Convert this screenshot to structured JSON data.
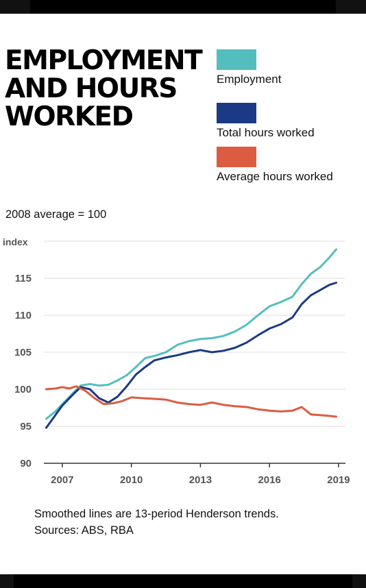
{
  "title": "EMPLOYMENT\nAND HOURS\nWORKED",
  "legend": [
    {
      "label": "Employment",
      "color": "#54bebe"
    },
    {
      "label": "Total hours worked",
      "color": "#1a3a85"
    },
    {
      "label": "Average hours worked",
      "color": "#db5c41"
    }
  ],
  "baseline_note": "2008 average = 100",
  "footnote": {
    "line1": "Smoothed lines are 13-period Henderson trends.",
    "line2": "Sources: ABS, RBA"
  },
  "chart_data": {
    "type": "line",
    "ylabel": "index",
    "ylim": [
      90,
      120
    ],
    "yticks": [
      90,
      95,
      100,
      105,
      110,
      115
    ],
    "xlim": [
      2006.2,
      2019.3
    ],
    "xticks": [
      2007,
      2010,
      2013,
      2016,
      2019
    ],
    "grid": true,
    "series": [
      {
        "name": "Employment",
        "color": "#54bebe",
        "x": [
          2006.3,
          2006.7,
          2007.0,
          2007.5,
          2007.8,
          2008.2,
          2008.6,
          2009.0,
          2009.4,
          2009.8,
          2010.2,
          2010.6,
          2011.0,
          2011.5,
          2012.0,
          2012.5,
          2013.0,
          2013.5,
          2014.0,
          2014.5,
          2015.0,
          2015.5,
          2016.0,
          2016.5,
          2017.0,
          2017.4,
          2017.8,
          2018.2,
          2018.6,
          2018.9
        ],
        "y": [
          96.0,
          97.0,
          98.0,
          99.6,
          100.5,
          100.7,
          100.5,
          100.6,
          101.2,
          101.9,
          103.0,
          104.2,
          104.5,
          105.0,
          106.0,
          106.5,
          106.8,
          106.9,
          107.2,
          107.8,
          108.7,
          110.0,
          111.2,
          111.8,
          112.5,
          114.2,
          115.6,
          116.5,
          117.8,
          118.9
        ]
      },
      {
        "name": "Total hours worked",
        "color": "#1a3a85",
        "x": [
          2006.3,
          2006.7,
          2007.0,
          2007.5,
          2007.8,
          2008.2,
          2008.6,
          2009.0,
          2009.4,
          2009.8,
          2010.2,
          2010.6,
          2011.0,
          2011.5,
          2012.0,
          2012.5,
          2013.0,
          2013.5,
          2014.0,
          2014.5,
          2015.0,
          2015.5,
          2016.0,
          2016.5,
          2017.0,
          2017.4,
          2017.8,
          2018.2,
          2018.6,
          2018.9
        ],
        "y": [
          94.8,
          96.5,
          97.8,
          99.4,
          100.3,
          100.0,
          98.8,
          98.2,
          99.0,
          100.4,
          102.0,
          103.0,
          103.9,
          104.3,
          104.6,
          105.0,
          105.3,
          105.0,
          105.2,
          105.6,
          106.3,
          107.3,
          108.2,
          108.8,
          109.7,
          111.5,
          112.7,
          113.4,
          114.1,
          114.4
        ]
      },
      {
        "name": "Average hours worked",
        "color": "#db5c41",
        "x": [
          2006.3,
          2006.7,
          2007.0,
          2007.3,
          2007.6,
          2008.0,
          2008.4,
          2008.8,
          2009.2,
          2009.6,
          2010.0,
          2010.5,
          2011.0,
          2011.5,
          2012.0,
          2012.5,
          2013.0,
          2013.5,
          2014.0,
          2014.5,
          2015.0,
          2015.5,
          2016.0,
          2016.5,
          2017.0,
          2017.4,
          2017.8,
          2018.2,
          2018.6,
          2018.9
        ],
        "y": [
          100.0,
          100.1,
          100.3,
          100.1,
          100.4,
          99.8,
          98.8,
          98.0,
          98.1,
          98.4,
          98.9,
          98.8,
          98.7,
          98.6,
          98.2,
          98.0,
          97.9,
          98.2,
          97.9,
          97.7,
          97.6,
          97.3,
          97.1,
          97.0,
          97.1,
          97.6,
          96.6,
          96.5,
          96.4,
          96.3
        ]
      }
    ]
  }
}
